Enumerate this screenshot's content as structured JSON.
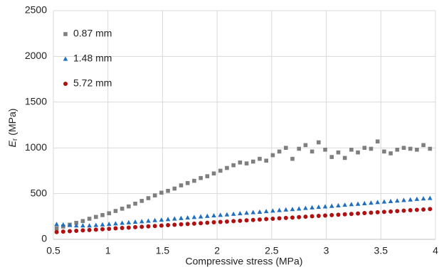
{
  "chart_data": {
    "type": "scatter",
    "x_label": "Compressive stress (MPa)",
    "y_label": [
      "E",
      "r",
      "(MPa)"
    ],
    "xlim": [
      0.5,
      4
    ],
    "xticks": [
      0.5,
      1,
      1.5,
      2,
      2.5,
      3,
      3.5,
      4
    ],
    "ylim": [
      0,
      2500
    ],
    "yticks": [
      0,
      500,
      1000,
      1500,
      2000,
      2500
    ],
    "grid": true,
    "legend": "upper-left",
    "x": [
      0.53,
      0.59,
      0.65,
      0.71,
      0.77,
      0.83,
      0.89,
      0.95,
      1.01,
      1.07,
      1.13,
      1.19,
      1.25,
      1.31,
      1.37,
      1.43,
      1.49,
      1.55,
      1.61,
      1.67,
      1.73,
      1.79,
      1.85,
      1.91,
      1.97,
      2.03,
      2.09,
      2.15,
      2.21,
      2.27,
      2.33,
      2.39,
      2.45,
      2.51,
      2.57,
      2.63,
      2.69,
      2.75,
      2.81,
      2.87,
      2.93,
      2.99,
      3.05,
      3.11,
      3.17,
      3.23,
      3.29,
      3.35,
      3.41,
      3.47,
      3.53,
      3.59,
      3.65,
      3.71,
      3.77,
      3.83,
      3.89,
      3.95
    ],
    "series": [
      {
        "name": "0.87 mm",
        "color": "#7f7f7f",
        "marker": "square",
        "values": [
          120,
          140,
          160,
          180,
          200,
          225,
          245,
          265,
          285,
          310,
          335,
          360,
          390,
          420,
          450,
          480,
          510,
          530,
          555,
          590,
          615,
          640,
          670,
          690,
          720,
          750,
          780,
          810,
          840,
          830,
          850,
          880,
          860,
          920,
          960,
          1000,
          880,
          990,
          1030,
          960,
          1060,
          980,
          900,
          950,
          890,
          980,
          950,
          1000,
          990,
          1070,
          960,
          940,
          980,
          1000,
          990,
          980,
          1030,
          990
        ]
      },
      {
        "name": "1.48 mm",
        "color": "#1f6fc0",
        "marker": "triangle",
        "values": [
          165,
          160,
          155,
          150,
          150,
          150,
          155,
          161,
          167,
          173,
          179,
          184,
          190,
          196,
          202,
          208,
          213,
          219,
          225,
          231,
          237,
          242,
          248,
          254,
          260,
          266,
          271,
          277,
          283,
          289,
          295,
          300,
          306,
          312,
          318,
          324,
          329,
          335,
          341,
          347,
          353,
          358,
          364,
          370,
          376,
          382,
          387,
          393,
          399,
          405,
          411,
          416,
          422,
          428,
          434,
          440,
          445,
          450
        ]
      },
      {
        "name": "5.72 mm",
        "color": "#b01010",
        "marker": "circle",
        "values": [
          80,
          84,
          89,
          93,
          98,
          102,
          106,
          111,
          115,
          120,
          124,
          128,
          133,
          137,
          142,
          146,
          150,
          155,
          159,
          164,
          168,
          172,
          177,
          181,
          186,
          190,
          194,
          199,
          203,
          208,
          212,
          216,
          221,
          225,
          230,
          234,
          238,
          243,
          247,
          252,
          256,
          260,
          265,
          269,
          274,
          278,
          282,
          287,
          291,
          296,
          300,
          304,
          309,
          313,
          318,
          322,
          326,
          331
        ]
      }
    ]
  }
}
